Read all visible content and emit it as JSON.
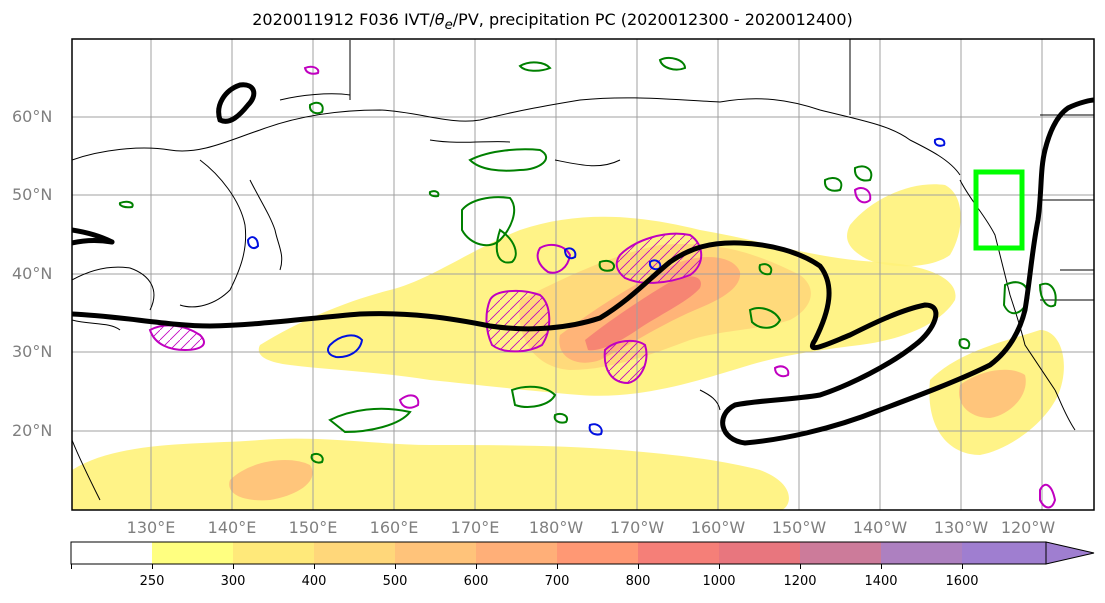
{
  "title": "2020011912 F036 IVT/θe/PV, precipitation PC (2020012300 - 2020012400)",
  "title_parts": {
    "prefix": "2020011912 F036 IVT/",
    "theta": "θ",
    "sub": "e",
    "suffix": "/PV, precipitation PC (2020012300 - 2020012400)"
  },
  "lat_labels": [
    "60°N",
    "50°N",
    "40°N",
    "30°N",
    "20°N"
  ],
  "lon_labels": [
    "130°E",
    "140°E",
    "150°E",
    "160°E",
    "170°E",
    "180°W",
    "170°W",
    "160°W",
    "150°W",
    "140°W",
    "130°W",
    "120°W"
  ],
  "colorbar": {
    "levels": [
      "250",
      "300",
      "400",
      "500",
      "600",
      "700",
      "800",
      "1000",
      "1200",
      "1400",
      "1600"
    ],
    "colors": [
      "#ffffff",
      "#ffff80",
      "#ffe97a",
      "#ffd77a",
      "#ffc37a",
      "#ffaf78",
      "#ff9874",
      "#f57f78",
      "#e8767e",
      "#cc7b9a",
      "#ad80c0",
      "#9f7ed0"
    ]
  },
  "colors": {
    "ivt_fill_light": "#fff27a",
    "ivt_fill_mid": "#ffc07a",
    "ivt_fill_high": "#f57c72",
    "theta_e_contour": "#000000",
    "pv_contour_magenta": "#c000c0",
    "pv_contour_blue": "#0010e0",
    "precip_contour_green": "#008000",
    "target_box": "#00ff00",
    "gridline": "#a0a0a0",
    "coastline": "#000000"
  }
}
